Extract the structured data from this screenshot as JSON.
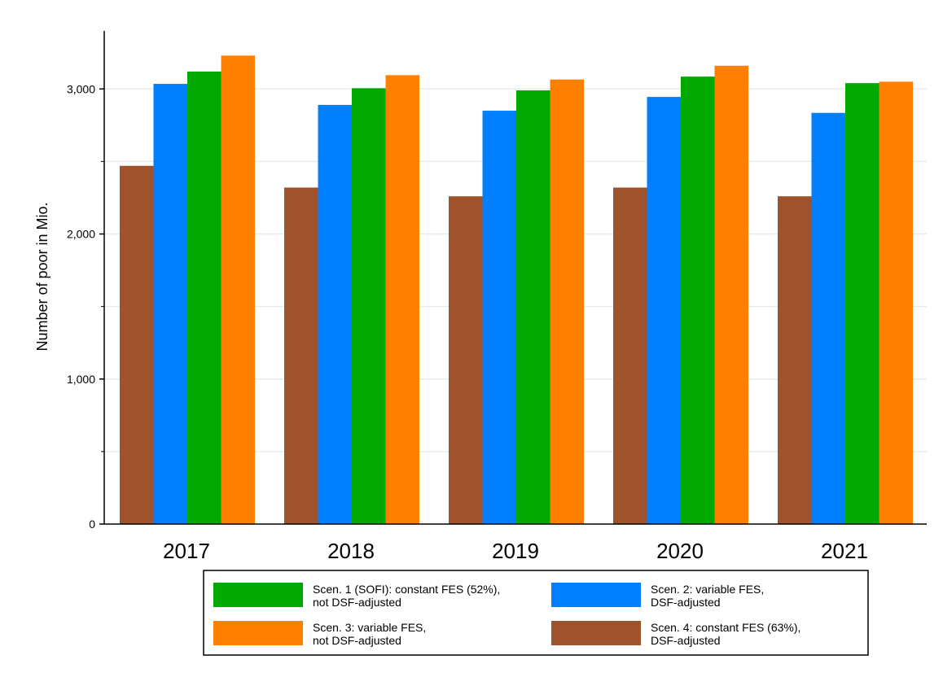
{
  "chart_data": {
    "type": "bar",
    "title": "",
    "xlabel": "",
    "ylabel": "Number of poor in Mio.",
    "ylim": [
      0,
      3400
    ],
    "yticks": [
      0,
      1000,
      2000,
      3000
    ],
    "ytick_labels": [
      "0",
      "1,000",
      "2,000",
      "3,000"
    ],
    "grid": true,
    "legend_position": "bottom",
    "categories": [
      "2017",
      "2018",
      "2019",
      "2020",
      "2021"
    ],
    "series": [
      {
        "key": "s4",
        "color": "#A0522D",
        "values": [
          2470,
          2320,
          2260,
          2320,
          2260
        ]
      },
      {
        "key": "s2",
        "color": "#0080FF",
        "values": [
          3035,
          2890,
          2850,
          2945,
          2835
        ]
      },
      {
        "key": "s1",
        "color": "#00A800",
        "values": [
          3120,
          3005,
          2990,
          3085,
          3040
        ]
      },
      {
        "key": "s3",
        "color": "#FF8000",
        "values": [
          3230,
          3095,
          3065,
          3160,
          3050
        ]
      }
    ],
    "legend": [
      {
        "series": "s1",
        "line1": "Scen. 1 (SOFI): constant FES (52%),",
        "line2": "not DSF-adjusted"
      },
      {
        "series": "s2",
        "line1": "Scen. 2: variable FES,",
        "line2": "DSF-adjusted"
      },
      {
        "series": "s3",
        "line1": "Scen. 3: variable FES,",
        "line2": "not DSF-adjusted"
      },
      {
        "series": "s4",
        "line1": "Scen. 4: constant FES (63%),",
        "line2": "DSF-adjusted"
      }
    ]
  }
}
